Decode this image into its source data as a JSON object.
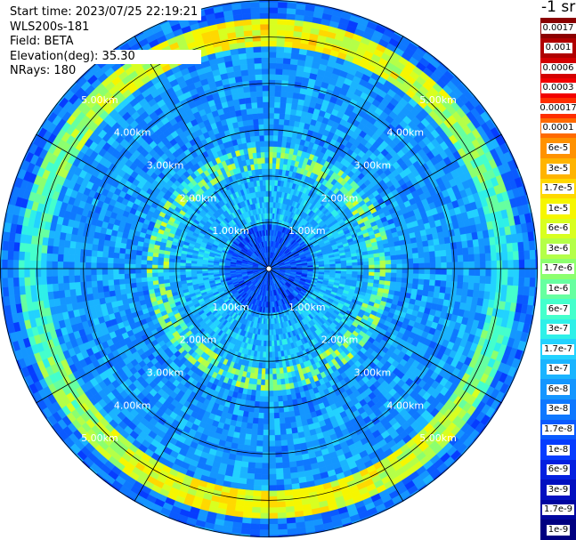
{
  "info": {
    "start_time": "Start time: 2023/07/25 22:19:21",
    "instrument": "WLS200s-181",
    "field": "Field: BETA",
    "elevation": "Elevation(deg): 35.30",
    "nrays": "NRays: 180"
  },
  "colorbar": {
    "unit_label": "-1 sr",
    "labels": [
      "0.0017",
      "0.001",
      "0.0006",
      "0.0003",
      "0.00017",
      "0.0001",
      "6e-5",
      "3e-5",
      "1.7e-5",
      "1e-5",
      "6e-6",
      "3e-6",
      "1.7e-6",
      "1e-6",
      "6e-7",
      "3e-7",
      "1.7e-7",
      "1e-7",
      "6e-8",
      "3e-8",
      "1.7e-8",
      "1e-8",
      "6e-9",
      "3e-9",
      "1.7e-9",
      "1e-9"
    ],
    "colors": [
      "#8b0000",
      "#b00000",
      "#d40000",
      "#f20000",
      "#ff2e00",
      "#ff6a00",
      "#ff9200",
      "#ffb400",
      "#ffd800",
      "#f6f600",
      "#d8ff20",
      "#b4ff48",
      "#8cff6e",
      "#66ffa0",
      "#44ffcc",
      "#2ef0e8",
      "#22d2ff",
      "#1ab4ff",
      "#1496ff",
      "#0e78ff",
      "#0a5aff",
      "#063cff",
      "#0420e0",
      "#0210c0",
      "#0006a0",
      "#000080"
    ]
  },
  "chart_data": {
    "type": "heatmap",
    "projection": "polar (PPI scan)",
    "field": "BETA",
    "elevation_deg": 35.3,
    "nrays": 180,
    "range_rings_km": [
      1.0,
      2.0,
      3.0,
      4.0,
      5.0
    ],
    "range_ring_labels": [
      "1.00km",
      "2.00km",
      "3.00km",
      "4.00km",
      "5.00km"
    ],
    "max_range_km": 5.8,
    "spoke_interval_deg": 30,
    "value_scale": "log",
    "value_range": [
      1e-09,
      0.0017
    ],
    "bands": [
      {
        "range_km": [
          0.0,
          1.0
        ],
        "typical_value": 1.7e-08,
        "note": "dark blue near center"
      },
      {
        "range_km": [
          1.0,
          2.2
        ],
        "typical_value": 1e-07,
        "note": "mostly cyan/light blue"
      },
      {
        "range_km": [
          2.2,
          2.6
        ],
        "typical_value": 1.7e-06,
        "note": "patchy green/yellow enhancements"
      },
      {
        "range_km": [
          2.6,
          4.8
        ],
        "typical_value": 6e-08,
        "note": "light blue, noisier"
      },
      {
        "range_km": [
          4.8,
          5.4
        ],
        "typical_value": 3e-06,
        "note": "green/yellow arc at north and south"
      },
      {
        "range_km": [
          5.4,
          5.8
        ],
        "typical_value": 3e-08,
        "note": "noisy blue edge"
      }
    ]
  }
}
